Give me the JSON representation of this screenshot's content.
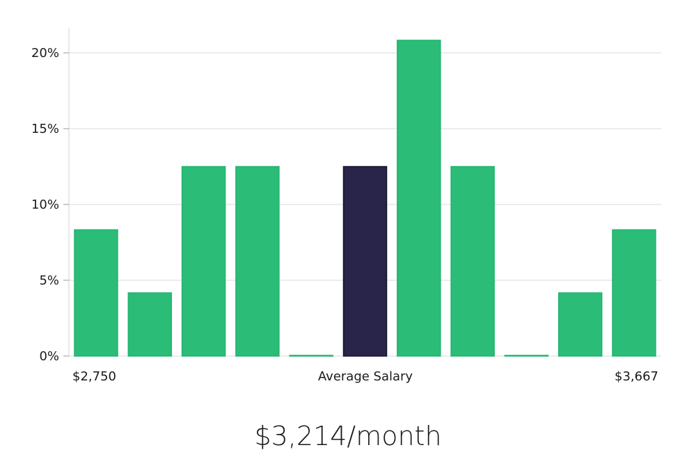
{
  "chart_data": {
    "type": "bar",
    "values": [
      8.33,
      4.17,
      12.5,
      12.5,
      0,
      12.5,
      20.83,
      12.5,
      0,
      4.17,
      8.33
    ],
    "highlight_index": 5,
    "ylim": [
      0,
      21.7
    ],
    "y_ticks": [
      0,
      5,
      10,
      15,
      20
    ],
    "y_tick_labels": [
      "0%",
      "5%",
      "10%",
      "15%",
      "20%"
    ],
    "x_labels": {
      "left": "$2,750",
      "center": "Average Salary",
      "right": "$3,667"
    },
    "grid": true,
    "colors": {
      "bar": "#2bbd77",
      "bar_stroke": "#22b46e",
      "highlight": "#28244a",
      "highlight_stroke": "#15132c",
      "grid": "#d9d9d9",
      "axis": "#d0d0d0"
    }
  },
  "summary": "$3,214/month"
}
